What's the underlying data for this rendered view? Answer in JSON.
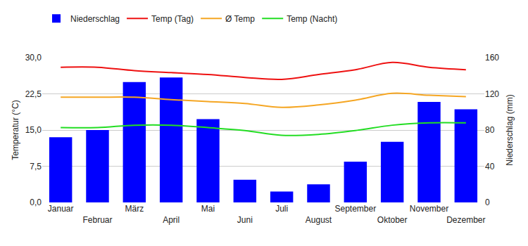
{
  "chart_data": {
    "type": "bar",
    "categories": [
      "Januar",
      "Februar",
      "März",
      "April",
      "Mai",
      "Juni",
      "Juli",
      "August",
      "September",
      "Oktober",
      "November",
      "Dezember"
    ],
    "series": [
      {
        "name": "Niederschlag",
        "type": "bar",
        "axis": "y2",
        "color": "#0000ff",
        "values": [
          72,
          80,
          133,
          138,
          92,
          25,
          12,
          20,
          45,
          67,
          111,
          103
        ]
      },
      {
        "name": "Temp (Tag)",
        "type": "line",
        "color": "#ee1111",
        "line_style": "spline",
        "values": [
          28.0,
          28.0,
          27.3,
          26.9,
          26.5,
          25.9,
          25.5,
          26.5,
          27.5,
          29.0,
          28.0,
          27.5
        ]
      },
      {
        "name": "Ø Temp",
        "type": "line",
        "color": "#f5a623",
        "line_style": "spline",
        "values": [
          21.8,
          21.8,
          21.8,
          21.3,
          20.9,
          20.5,
          19.7,
          20.2,
          21.2,
          22.6,
          22.2,
          21.9
        ]
      },
      {
        "name": "Temp (Nacht)",
        "type": "line",
        "color": "#22dd22",
        "line_style": "spline",
        "values": [
          15.5,
          15.5,
          16.0,
          16.0,
          15.5,
          14.9,
          13.9,
          14.1,
          14.9,
          16.0,
          16.5,
          16.5
        ]
      }
    ],
    "y_label": "Temperatur (°C)",
    "y2_label": "Niederschlag (mm)",
    "ylim": [
      0,
      30
    ],
    "yticks": [
      {
        "value": 0,
        "label": "0,0"
      },
      {
        "value": 7.5,
        "label": "7,5"
      },
      {
        "value": 15,
        "label": "15,0"
      },
      {
        "value": 22.5,
        "label": "22,5"
      },
      {
        "value": 30,
        "label": "30,0"
      }
    ],
    "y2lim": [
      0,
      160
    ],
    "y2ticks": [
      0,
      40,
      80,
      120,
      160
    ],
    "grid": true,
    "legend": "top-left"
  }
}
